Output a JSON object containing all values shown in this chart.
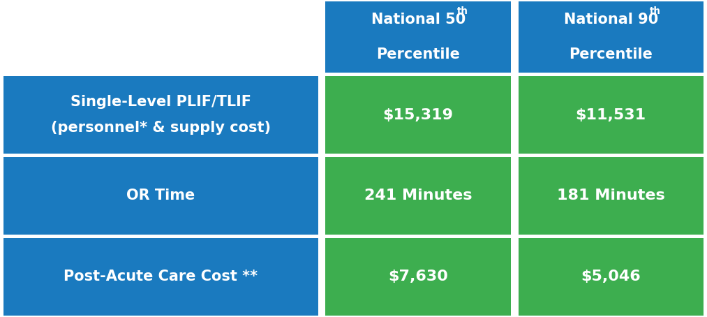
{
  "header_col2_line1": "National 50",
  "header_col2_sup": "th",
  "header_col2_line2": "Percentile",
  "header_col3_line1": "National 90",
  "header_col3_sup": "th",
  "header_col3_line2": "Percentile",
  "rows": [
    {
      "label_line1": "Single-Level PLIF/TLIF",
      "label_line2": "(personnel* & supply cost)",
      "val1": "$15,319",
      "val2": "$11,531"
    },
    {
      "label_line1": "OR Time",
      "label_line2": "",
      "val1": "241 Minutes",
      "val2": "181 Minutes"
    },
    {
      "label_line1": "Post-Acute Care Cost **",
      "label_line2": "",
      "val1": "$7,630",
      "val2": "$5,046"
    }
  ],
  "blue_color": "#1a7abf",
  "green_color": "#3dae4f",
  "white_color": "#ffffff",
  "font_size_header": 15,
  "font_size_cell": 16,
  "font_size_label": 15
}
